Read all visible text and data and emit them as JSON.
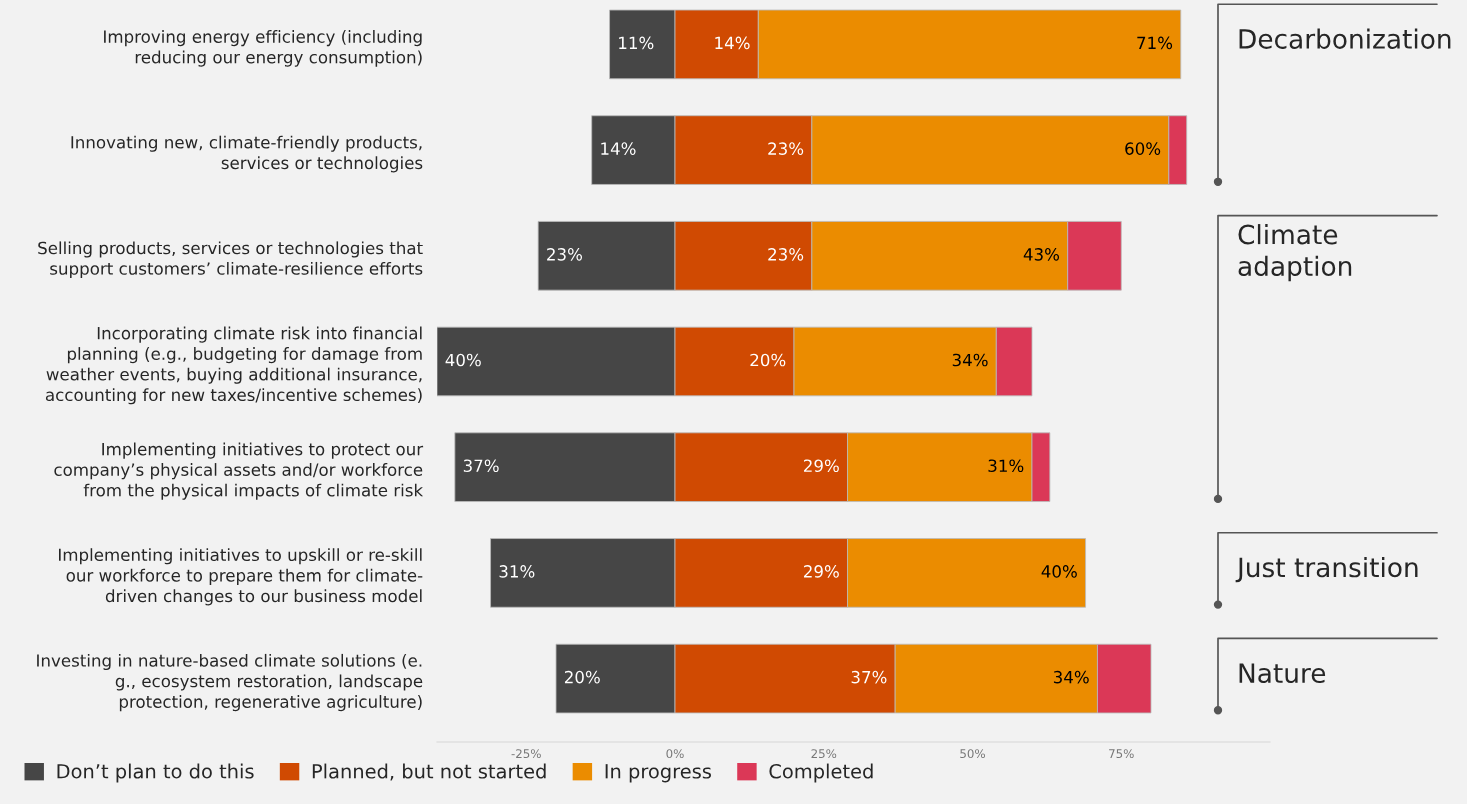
{
  "chart_data": {
    "type": "bar",
    "orientation": "horizontal",
    "stacked": true,
    "categories": [
      "Improving energy efficiency (including\nreducing our energy consumption)",
      "Innovating new, climate-friendly products,\nservices or technologies",
      "Selling products, services or technologies that\nsupport customers’ climate-resilience efforts",
      "Incorporating climate risk into financial\nplanning (e.g., budgeting for damage from\nweather events, buying additional insurance,\naccounting for new taxes/incentive schemes)",
      "Implementing initiatives to protect our\ncompany’s physical assets and/or workforce\nfrom the physical impacts of climate risk",
      "Implementing initiatives to upskill or re-skill\nour workforce to prepare them for climate-\ndriven changes to our business model",
      "Investing in nature-based climate solutions (e.\ng., ecosystem restoration, landscape\nprotection, regenerative agriculture)"
    ],
    "series": [
      {
        "name": "Don’t plan to do this",
        "color": "#464646",
        "values": [
          11,
          14,
          23,
          40,
          37,
          31,
          20
        ],
        "base": [
          -11,
          -14,
          -23,
          -40,
          -37,
          -31,
          -20
        ],
        "value_labels": [
          "11%",
          "14%",
          "23%",
          "40%",
          "37%",
          "31%",
          "20%"
        ]
      },
      {
        "name": "Planned, but not started",
        "color": "#d04a02",
        "values": [
          14,
          23,
          23,
          20,
          29,
          29,
          37
        ],
        "value_labels": [
          "14%",
          "23%",
          "23%",
          "20%",
          "29%",
          "29%",
          "37%"
        ]
      },
      {
        "name": "In progress",
        "color": "#eb8c00",
        "values": [
          71,
          60,
          43,
          34,
          31,
          40,
          34
        ],
        "value_labels": [
          "71%",
          "60%",
          "43%",
          "34%",
          "31%",
          "40%",
          "34%"
        ]
      },
      {
        "name": "Completed",
        "color": "#db3857",
        "values": [
          0,
          3,
          9,
          6,
          3,
          0,
          9
        ]
      }
    ],
    "xlim": [
      -40,
      100
    ],
    "xticks": [
      {
        "value": -25,
        "label": "-25%"
      },
      {
        "value": 0,
        "label": "0%"
      },
      {
        "value": 25,
        "label": "25%"
      },
      {
        "value": 50,
        "label": "50%"
      },
      {
        "value": 75,
        "label": "75%"
      }
    ],
    "grid": false,
    "legend": "bottom",
    "annotations": [
      "Decarbonization",
      "Climate\nadaption",
      "Just transition",
      "Nature"
    ]
  }
}
